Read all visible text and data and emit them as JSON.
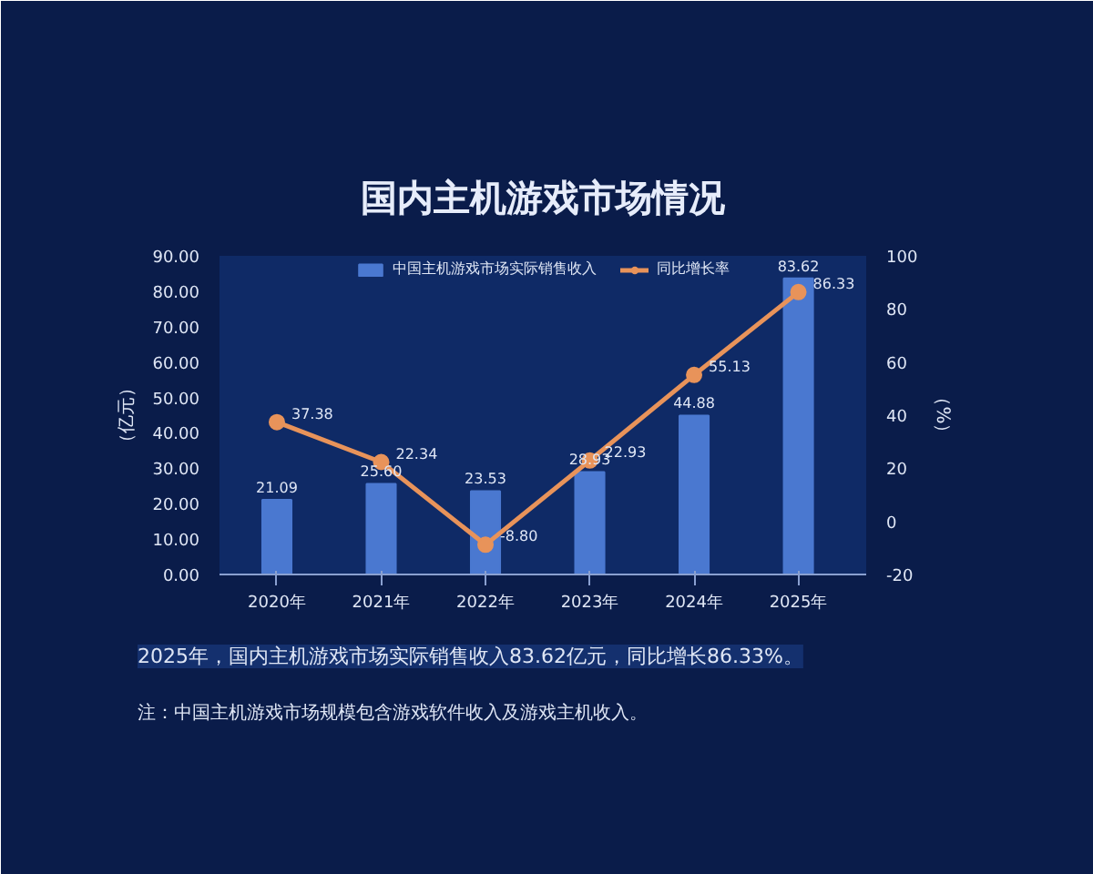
{
  "chart_data": {
    "type": "bar",
    "title": "国内主机游戏市场情况",
    "categories": [
      "2020年",
      "2021年",
      "2022年",
      "2023年",
      "2024年",
      "2025年"
    ],
    "series": [
      {
        "name": "中国主机游戏市场实际销售收入",
        "color": "#4a78d0",
        "values": [
          21.09,
          25.6,
          23.53,
          28.93,
          44.88,
          83.62
        ],
        "value_labels": [
          "21.09",
          "25.60",
          "23.53",
          "28.93",
          "44.88",
          "83.62"
        ]
      },
      {
        "name": "同比增长率",
        "type": "line",
        "axis": "y2",
        "color": "#e8935a",
        "values": [
          37.38,
          22.34,
          -8.8,
          22.93,
          55.13,
          86.33
        ],
        "value_labels": [
          "37.38",
          "22.34",
          "-8.80",
          "22.93",
          "55.13",
          "86.33"
        ]
      }
    ],
    "ylabel": "（亿元）",
    "y2label": "（%）",
    "ylim": [
      0,
      90
    ],
    "yticks": [
      {
        "value": 0,
        "label": "0.00"
      },
      {
        "value": 10,
        "label": "10.00"
      },
      {
        "value": 20,
        "label": "20.00"
      },
      {
        "value": 30,
        "label": "30.00"
      },
      {
        "value": 40,
        "label": "40.00"
      },
      {
        "value": 50,
        "label": "50.00"
      },
      {
        "value": 60,
        "label": "60.00"
      },
      {
        "value": 70,
        "label": "70.00"
      },
      {
        "value": 80,
        "label": "80.00"
      },
      {
        "value": 90,
        "label": "90.00"
      }
    ],
    "y2lim": [
      -20,
      100
    ],
    "y2ticks": [
      -20,
      0,
      20,
      40,
      60,
      80,
      100
    ],
    "legend": "top",
    "marker": "circle",
    "annotations": [
      "2025年，国内主机游戏市场实际销售收入83.62亿元，同比增长86.33%。",
      "注：中国主机游戏市场规模包含游戏软件收入及游戏主机收入。"
    ]
  }
}
